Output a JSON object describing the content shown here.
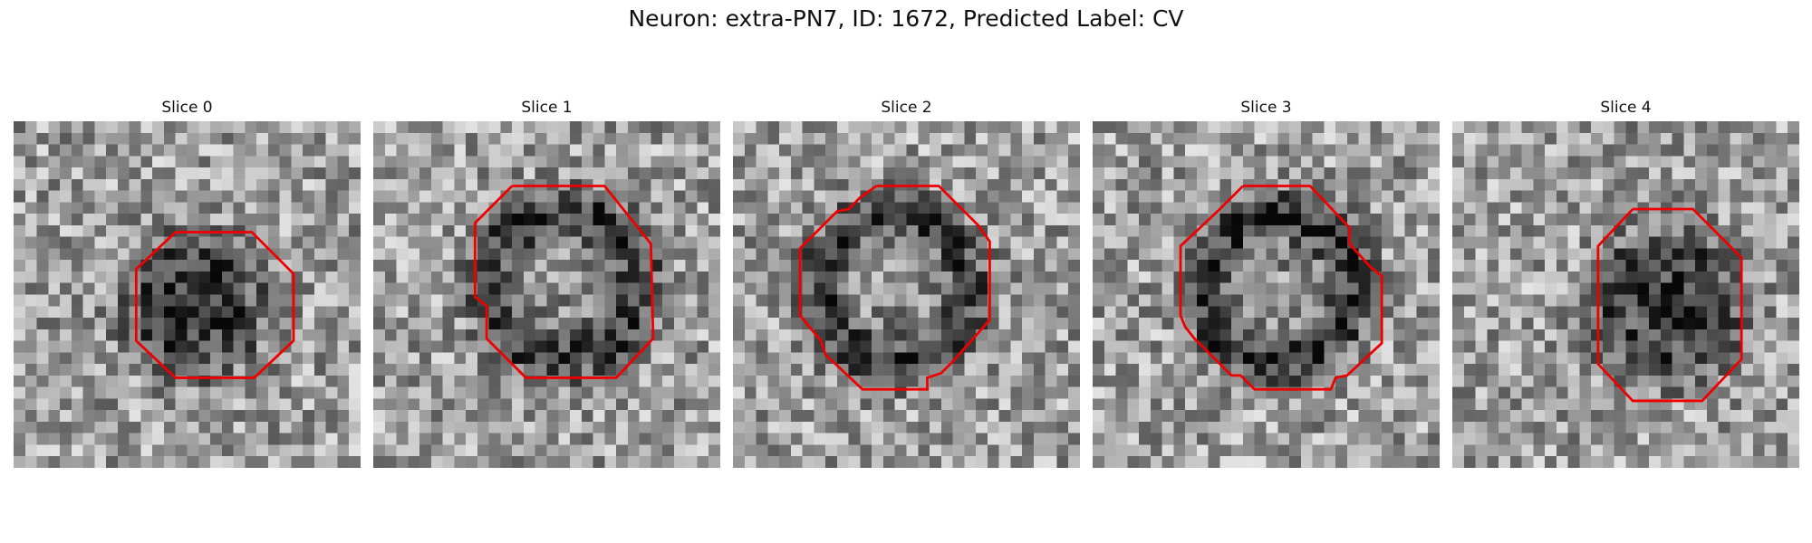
{
  "title": "Neuron: extra-PN7, ID: 1672, Predicted Label: CV",
  "panels": [
    {
      "label": "Slice 0",
      "contour_color": "#ee0000",
      "seed": 11,
      "blob_strength": 0.55
    },
    {
      "label": "Slice 1",
      "contour_color": "#ee0000",
      "seed": 23,
      "blob_strength": 0.45
    },
    {
      "label": "Slice 2",
      "contour_color": "#ee0000",
      "seed": 37,
      "blob_strength": 0.4
    },
    {
      "label": "Slice 3",
      "contour_color": "#ee0000",
      "seed": 41,
      "blob_strength": 0.45
    },
    {
      "label": "Slice 4",
      "contour_color": "#ee0000",
      "seed": 53,
      "blob_strength": 0.55
    }
  ]
}
